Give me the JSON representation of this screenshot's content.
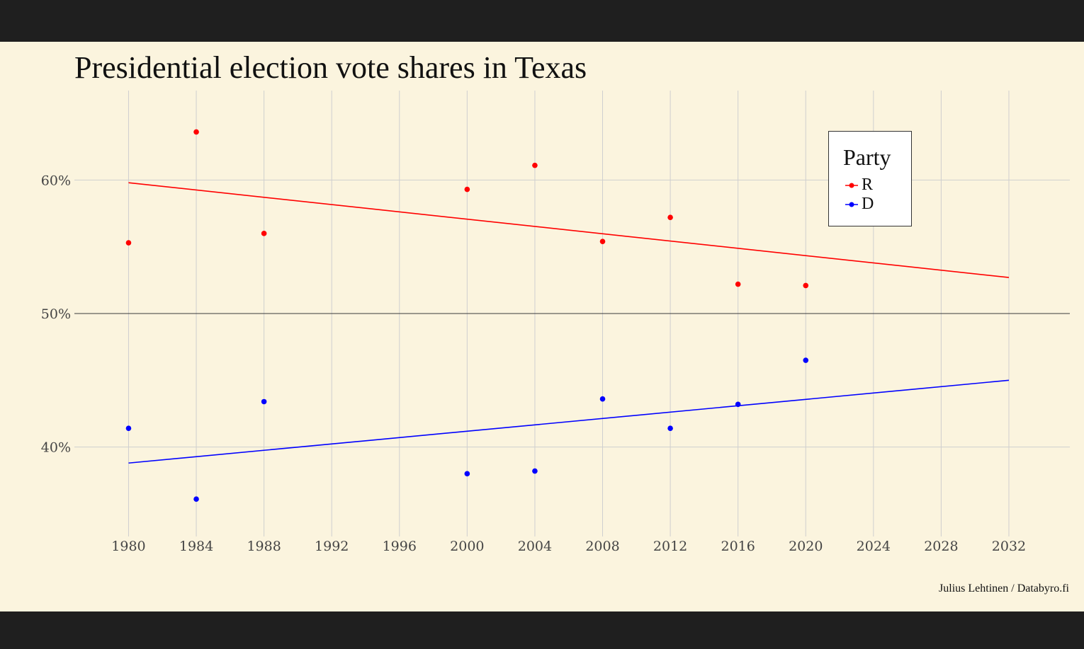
{
  "chart_data": {
    "type": "scatter",
    "title": "Presidential election vote shares in Texas",
    "xlabel": "",
    "ylabel": "",
    "xlim": [
      1976.8,
      2035.6
    ],
    "ylim": [
      33.3,
      66.7
    ],
    "xticks": [
      1980,
      1984,
      1988,
      1992,
      1996,
      2000,
      2004,
      2008,
      2012,
      2016,
      2020,
      2024,
      2028,
      2032
    ],
    "yticks": [
      40,
      50,
      60
    ],
    "ytick_labels": [
      "40%",
      "50%",
      "60%"
    ],
    "reference_line": 50,
    "grid": true,
    "legend": {
      "title": "Party",
      "position": "top-right"
    },
    "series": [
      {
        "name": "R",
        "color": "#ff0000",
        "points": [
          {
            "x": 1980,
            "y": 55.3
          },
          {
            "x": 1984,
            "y": 63.6
          },
          {
            "x": 1988,
            "y": 56.0
          },
          {
            "x": 2000,
            "y": 59.3
          },
          {
            "x": 2004,
            "y": 61.1
          },
          {
            "x": 2008,
            "y": 55.4
          },
          {
            "x": 2012,
            "y": 57.2
          },
          {
            "x": 2016,
            "y": 52.2
          },
          {
            "x": 2020,
            "y": 52.1
          }
        ],
        "trend": [
          {
            "x": 1980,
            "y": 59.8
          },
          {
            "x": 2032,
            "y": 52.7
          }
        ]
      },
      {
        "name": "D",
        "color": "#0000ff",
        "points": [
          {
            "x": 1980,
            "y": 41.4
          },
          {
            "x": 1984,
            "y": 36.1
          },
          {
            "x": 1988,
            "y": 43.4
          },
          {
            "x": 2000,
            "y": 38.0
          },
          {
            "x": 2004,
            "y": 38.2
          },
          {
            "x": 2008,
            "y": 43.6
          },
          {
            "x": 2012,
            "y": 41.4
          },
          {
            "x": 2016,
            "y": 43.2
          },
          {
            "x": 2020,
            "y": 46.5
          }
        ],
        "trend": [
          {
            "x": 1980,
            "y": 38.8
          },
          {
            "x": 2032,
            "y": 45.0
          }
        ]
      }
    ],
    "caption": "Julius Lehtinen / Databyro.fi"
  }
}
